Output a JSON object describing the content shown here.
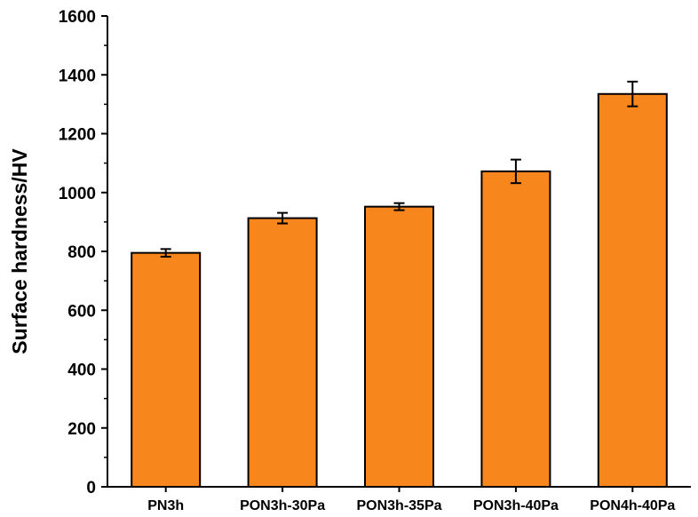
{
  "chart_data": {
    "type": "bar",
    "categories": [
      "PN3h",
      "PON3h-30Pa",
      "PON3h-35Pa",
      "PON3h-40Pa",
      "PON4h-40Pa"
    ],
    "values": [
      795,
      913,
      952,
      1072,
      1335
    ],
    "errors": [
      13,
      18,
      12,
      40,
      42
    ],
    "title": "",
    "xlabel": "",
    "ylabel": "Surface hardness/HV",
    "ylim": [
      0,
      1600
    ],
    "yticks": [
      0,
      200,
      400,
      600,
      800,
      1000,
      1200,
      1400,
      1600
    ],
    "grid": false,
    "bar_color": "#f7861c",
    "edge_color": "#000000"
  }
}
